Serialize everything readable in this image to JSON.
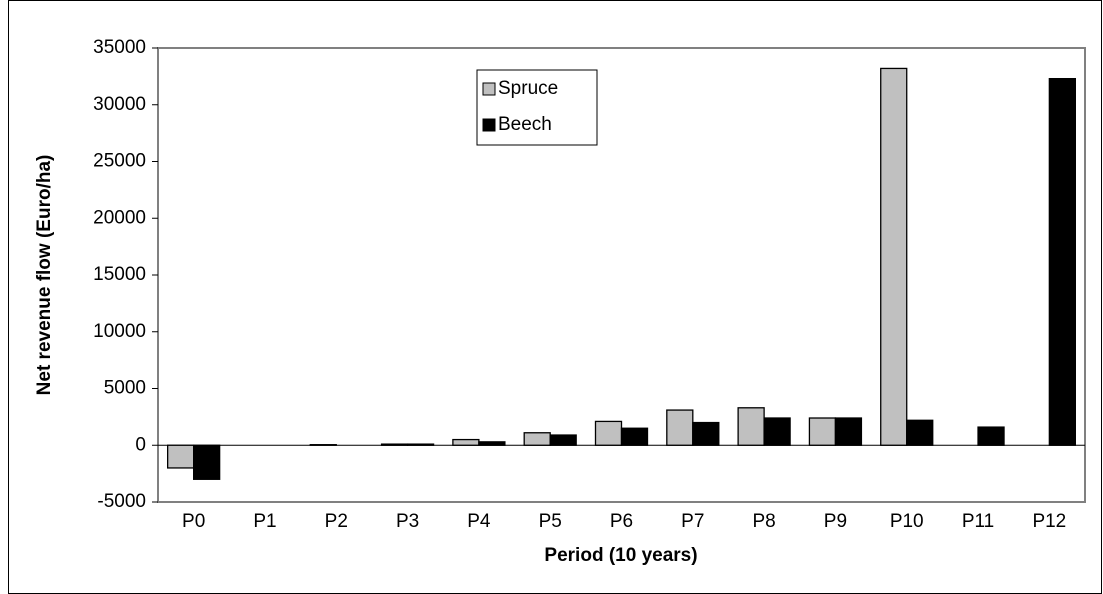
{
  "chart_data": {
    "type": "bar",
    "x_label": "Period (10 years)",
    "y_label": "Net revenue flow (Euro/ha)",
    "categories": [
      "P0",
      "P1",
      "P2",
      "P3",
      "P4",
      "P5",
      "P6",
      "P7",
      "P8",
      "P9",
      "P10",
      "P11",
      "P12"
    ],
    "series": [
      {
        "name": "Spruce",
        "color": "#c0c0c0",
        "values": [
          -2000,
          0,
          50,
          100,
          500,
          1100,
          2100,
          3100,
          3300,
          2400,
          33200,
          0,
          0
        ]
      },
      {
        "name": "Beech",
        "color": "#000000",
        "values": [
          -3000,
          0,
          0,
          100,
          300,
          900,
          1500,
          2000,
          2400,
          2400,
          2200,
          1600,
          32300
        ]
      }
    ],
    "ylim": [
      -5000,
      35000
    ],
    "yticks": [
      -5000,
      0,
      5000,
      10000,
      15000,
      20000,
      25000,
      30000,
      35000
    ],
    "legend": "top"
  }
}
